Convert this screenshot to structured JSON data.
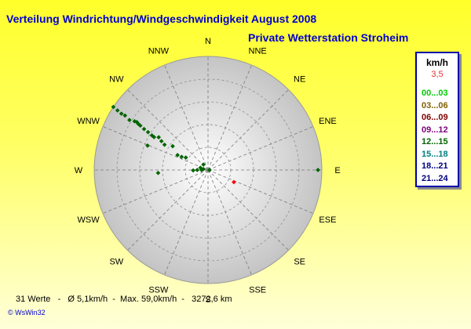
{
  "header": {
    "title": "Verteilung Windrichtung/Windgeschwindigkeit  August 2008",
    "subtitle": "Private Wetterstation Stroheim"
  },
  "legend": {
    "unit": "km/h",
    "calm_value": "3,5",
    "items": [
      {
        "label": "00...03",
        "color": "#00cc00"
      },
      {
        "label": "03...06",
        "color": "#806000"
      },
      {
        "label": "06...09",
        "color": "#800000"
      },
      {
        "label": "09...12",
        "color": "#800080"
      },
      {
        "label": "12...15",
        "color": "#006400"
      },
      {
        "label": "15...18",
        "color": "#008080"
      },
      {
        "label": "18...21",
        "color": "#000080"
      },
      {
        "label": "21...24",
        "color": "#000080"
      }
    ]
  },
  "footer": {
    "stats": "31 Werte   -   Ø 5,1km/h  -  Max. 59,0km/h  -   3272,6 km",
    "brand": "© WsWin32"
  },
  "chart_data": {
    "type": "scatter",
    "directions": [
      "N",
      "NNE",
      "NE",
      "ENE",
      "E",
      "ESE",
      "SE",
      "SSE",
      "S",
      "SSW",
      "SW",
      "WSW",
      "W",
      "WNW",
      "NW",
      "NNW"
    ],
    "radial_max": 59.0,
    "grid": true,
    "points_color": "#006400",
    "points": [
      {
        "bearing": 303.7,
        "speed": 59.0
      },
      {
        "bearing": 303.4,
        "speed": 56.2
      },
      {
        "bearing": 303.1,
        "speed": 53.6
      },
      {
        "bearing": 303.3,
        "speed": 51.5
      },
      {
        "bearing": 302.5,
        "speed": 48.3
      },
      {
        "bearing": 303.6,
        "speed": 45.7
      },
      {
        "bearing": 304.0,
        "speed": 44.5
      },
      {
        "bearing": 303.5,
        "speed": 43.3
      },
      {
        "bearing": 303.3,
        "speed": 42.0
      },
      {
        "bearing": 302.7,
        "speed": 39.4
      },
      {
        "bearing": 302.3,
        "speed": 36.8
      },
      {
        "bearing": 301.7,
        "speed": 34.2
      },
      {
        "bearing": 301.4,
        "speed": 32.8
      },
      {
        "bearing": 303.6,
        "speed": 30.7
      },
      {
        "bearing": 301.8,
        "speed": 28.4
      },
      {
        "bearing": 300.2,
        "speed": 26.1
      },
      {
        "bearing": 304.0,
        "speed": 22.1
      },
      {
        "bearing": 296.1,
        "speed": 17.6
      },
      {
        "bearing": 296.5,
        "speed": 15.3
      },
      {
        "bearing": 299.3,
        "speed": 13.2
      },
      {
        "bearing": 292.0,
        "speed": 33.8
      },
      {
        "bearing": 266.6,
        "speed": 25.9
      },
      {
        "bearing": 268.3,
        "speed": 7.7
      },
      {
        "bearing": 270.0,
        "speed": 5.6
      },
      {
        "bearing": 268.6,
        "speed": 3.3
      },
      {
        "bearing": 286.3,
        "speed": 4.1
      },
      {
        "bearing": 319.8,
        "speed": 3.7
      },
      {
        "bearing": 281.3,
        "speed": 2.4
      },
      {
        "bearing": 90.0,
        "speed": 57.0
      },
      {
        "bearing": 90.0,
        "speed": 0.8
      }
    ],
    "highlight": {
      "bearing": 115.2,
      "speed": 14.8,
      "color": "#ff0000"
    }
  }
}
